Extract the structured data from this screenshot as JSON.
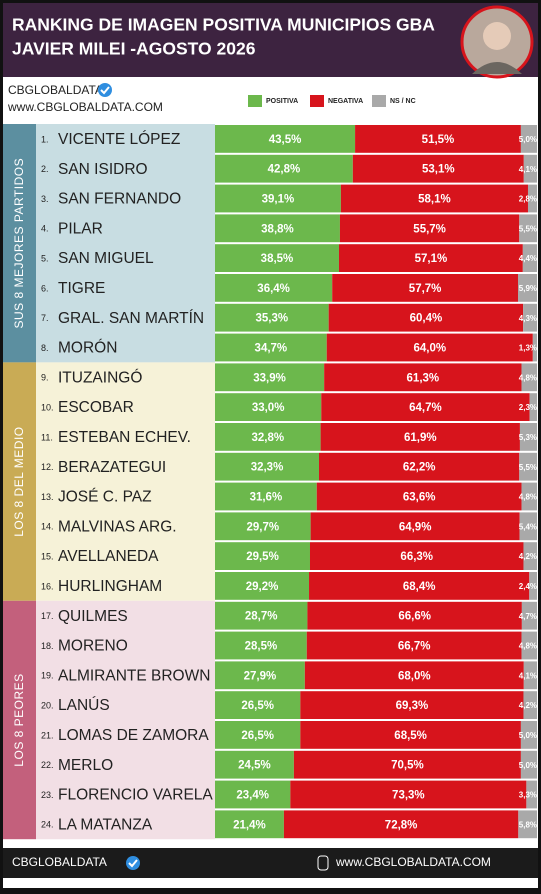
{
  "chart_data": {
    "type": "bar",
    "orientation": "horizontal",
    "stacked": true,
    "title": "RANKING DE IMAGEN POSITIVA MUNICIPIOS GBA",
    "subtitle": "JAVIER MILEI -AGOSTO 2026",
    "brand": {
      "name": "CBGLOBALDATA",
      "url": "www.CBGLOBALDATA.COM"
    },
    "footer": {
      "name": "CBGLOBALDATA",
      "url": "www.CBGLOBALDATA.COM"
    },
    "xlim": [
      0,
      100
    ],
    "ranks": [
      "1.",
      "2.",
      "3.",
      "4.",
      "5.",
      "6.",
      "7.",
      "8.",
      "9.",
      "10.",
      "11.",
      "12.",
      "13.",
      "14.",
      "15.",
      "16.",
      "17.",
      "18.",
      "19.",
      "20.",
      "21.",
      "22.",
      "23.",
      "24."
    ],
    "categories": [
      "VICENTE LÓPEZ",
      "SAN ISIDRO",
      "SAN FERNANDO",
      "PILAR",
      "SAN MIGUEL",
      "TIGRE",
      "GRAL. SAN MARTÍN",
      "MORÓN",
      "ITUZAINGÓ",
      "ESCOBAR",
      "ESTEBAN ECHEV.",
      "BERAZATEGUI",
      "JOSÉ C. PAZ",
      "MALVINAS ARG.",
      "AVELLANEDA",
      "HURLINGHAM",
      "QUILMES",
      "MORENO",
      "ALMIRANTE BROWN",
      "LANÚS",
      "LOMAS DE ZAMORA",
      "MERLO",
      "FLORENCIO VARELA",
      "LA MATANZA"
    ],
    "groups": [
      {
        "label": "SUS 8 MEJORES PARTIDOS",
        "size": 8,
        "color": "#c8dde2",
        "band": "#5c8fa0"
      },
      {
        "label": "LOS 8 DEL MEDIO",
        "size": 8,
        "color": "#f6f2d8",
        "band": "#c9ab55"
      },
      {
        "label": "LOS 8 PEORES",
        "size": 8,
        "color": "#f2dfe5",
        "band": "#c3607c"
      }
    ],
    "series": [
      {
        "name": "POSITIVA",
        "color": "#6cb84c",
        "values": [
          43.5,
          42.8,
          39.1,
          38.8,
          38.5,
          36.4,
          35.3,
          34.7,
          33.9,
          33.0,
          32.8,
          32.3,
          31.6,
          29.7,
          29.5,
          29.2,
          28.7,
          28.5,
          27.9,
          26.5,
          26.5,
          24.5,
          23.4,
          21.4
        ],
        "value_labels": [
          "43,5%",
          "42,8%",
          "39,1%",
          "38,8%",
          "38,5%",
          "36,4%",
          "35,3%",
          "34,7%",
          "33,9%",
          "33,0%",
          "32,8%",
          "32,3%",
          "31,6%",
          "29,7%",
          "29,5%",
          "29,2%",
          "28,7%",
          "28,5%",
          "27,9%",
          "26,5%",
          "26,5%",
          "24,5%",
          "23,4%",
          "21,4%"
        ]
      },
      {
        "name": "NEGATIVA",
        "color": "#d7141c",
        "values": [
          51.5,
          53.1,
          58.1,
          55.7,
          57.1,
          57.7,
          60.4,
          64.0,
          61.3,
          64.7,
          61.9,
          62.2,
          63.6,
          64.9,
          66.3,
          68.4,
          66.6,
          66.7,
          68.0,
          69.3,
          68.5,
          70.5,
          73.3,
          72.8
        ],
        "value_labels": [
          "51,5%",
          "53,1%",
          "58,1%",
          "55,7%",
          "57,1%",
          "57,7%",
          "60,4%",
          "64,0%",
          "61,3%",
          "64,7%",
          "61,9%",
          "62,2%",
          "63,6%",
          "64,9%",
          "66,3%",
          "68,4%",
          "66,6%",
          "66,7%",
          "68,0%",
          "69,3%",
          "68,5%",
          "70,5%",
          "73,3%",
          "72,8%"
        ]
      },
      {
        "name": "NS / NC",
        "color": "#a9a9a9",
        "values": [
          5.0,
          4.1,
          2.8,
          5.5,
          4.4,
          5.9,
          4.3,
          1.3,
          4.8,
          2.3,
          5.3,
          5.5,
          4.8,
          5.4,
          4.2,
          2.4,
          4.7,
          4.8,
          4.1,
          4.2,
          5.0,
          5.0,
          3.3,
          5.8
        ],
        "value_labels": [
          "5,0%",
          "4,1%",
          "2,8%",
          "5,5%",
          "4,4%",
          "5,9%",
          "4,3%",
          "1,3%",
          "4,8%",
          "2,3%",
          "5,3%",
          "5,5%",
          "4,8%",
          "5,4%",
          "4,2%",
          "2,4%",
          "4,7%",
          "4,8%",
          "4,1%",
          "4,2%",
          "5,0%",
          "5,0%",
          "3,3%",
          "5,8%"
        ]
      }
    ]
  }
}
